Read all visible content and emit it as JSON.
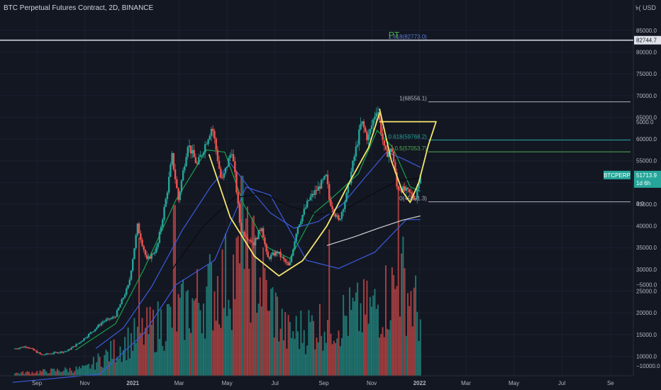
{
  "header": {
    "title": "BTC Perpetual Futures Contract, 2D, BINANCE",
    "currency": "USD",
    "currency_prefix": "৳("
  },
  "badges": {
    "symbol": "BTCPERP",
    "last_price": "51713.9",
    "countdown": "1d 6h",
    "pt_level_price": "82744.7"
  },
  "colors": {
    "background": "#131722",
    "up": "#26a69a",
    "down": "#ef5350",
    "ma_fast": "#16a34a",
    "ma_mid": "#3b5bdb",
    "ma_slow": "#0b0d12",
    "ma_long": "#cfcfcf",
    "pattern": "#f5e66e",
    "pt_label": "#4caf50",
    "fib_1618": "#5b7bd5",
    "fib_1": "#b2b5be",
    "fib_0618": "#26a69a",
    "fib_05": "#4caf50",
    "fib_0": "#b2b5be"
  },
  "chart_data": {
    "type": "candlestick",
    "title": "BTC Perpetual Futures Contract, 2D, BINANCE",
    "x_axis": {
      "ticks": [
        {
          "label": "Sep",
          "date": "2020-09-01"
        },
        {
          "label": "Nov",
          "date": "2020-11-01"
        },
        {
          "label": "2021",
          "date": "2021-01-01"
        },
        {
          "label": "Mar",
          "date": "2021-03-01"
        },
        {
          "label": "May",
          "date": "2021-05-01"
        },
        {
          "label": "Jul",
          "date": "2021-07-01"
        },
        {
          "label": "Sep",
          "date": "2021-09-01"
        },
        {
          "label": "Nov",
          "date": "2021-11-01"
        },
        {
          "label": "2022",
          "date": "2022-01-01"
        },
        {
          "label": "Mar",
          "date": "2022-03-01"
        },
        {
          "label": "May",
          "date": "2022-05-01"
        },
        {
          "label": "Jul",
          "date": "2022-07-01"
        },
        {
          "label": "Se",
          "date": "2022-09-01"
        }
      ],
      "range": [
        "2020-07-16",
        "2022-09-30"
      ]
    },
    "price_axis": {
      "ticks": [
        10000,
        15000,
        20000,
        25000,
        30000,
        35000,
        40000,
        45000,
        50000,
        55000,
        60000,
        65000,
        70000,
        75000,
        80000,
        85000
      ],
      "range": [
        5500,
        92000
      ]
    },
    "volume_axis": {
      "ticks": [
        -10000,
        -5000,
        0,
        5000,
        10000
      ],
      "labels": [
        "−10000.0",
        "−5000.0",
        "0.0",
        "5000.0",
        "10000.0"
      ],
      "range": [
        -10600,
        12500
      ]
    },
    "price_keypoints": [
      [
        "2020-08-03",
        11700
      ],
      [
        "2020-08-20",
        12300
      ],
      [
        "2020-09-08",
        10300
      ],
      [
        "2020-09-25",
        10800
      ],
      [
        "2020-10-10",
        11200
      ],
      [
        "2020-10-25",
        13000
      ],
      [
        "2020-11-10",
        15500
      ],
      [
        "2020-11-25",
        18000
      ],
      [
        "2020-12-10",
        19000
      ],
      [
        "2020-12-28",
        26500
      ],
      [
        "2021-01-08",
        40000
      ],
      [
        "2021-01-20",
        32000
      ],
      [
        "2021-02-02",
        35000
      ],
      [
        "2021-02-14",
        47000
      ],
      [
        "2021-02-21",
        56000
      ],
      [
        "2021-03-01",
        46000
      ],
      [
        "2021-03-13",
        59000
      ],
      [
        "2021-03-25",
        54000
      ],
      [
        "2021-04-13",
        63000
      ],
      [
        "2021-04-25",
        50000
      ],
      [
        "2021-05-08",
        57500
      ],
      [
        "2021-05-13",
        50000
      ],
      [
        "2021-05-19",
        39000
      ],
      [
        "2021-06-05",
        36000
      ],
      [
        "2021-06-15",
        40000
      ],
      [
        "2021-06-22",
        32500
      ],
      [
        "2021-07-05",
        34000
      ],
      [
        "2021-07-20",
        30500
      ],
      [
        "2021-07-30",
        39500
      ],
      [
        "2021-08-14",
        46000
      ],
      [
        "2021-08-25",
        48500
      ],
      [
        "2021-09-06",
        51500
      ],
      [
        "2021-09-08",
        46500
      ],
      [
        "2021-09-21",
        41000
      ],
      [
        "2021-10-01",
        47000
      ],
      [
        "2021-10-20",
        64000
      ],
      [
        "2021-10-28",
        60000
      ],
      [
        "2021-11-09",
        67500
      ],
      [
        "2021-11-19",
        56500
      ],
      [
        "2021-11-28",
        57500
      ],
      [
        "2021-12-04",
        49000
      ],
      [
        "2021-12-16",
        48000
      ],
      [
        "2021-12-28",
        46500
      ],
      [
        "2022-01-02",
        51714
      ]
    ],
    "series": [
      {
        "name": "MA fast",
        "color": "#16a34a",
        "points": [
          [
            "2020-10-20",
            11400
          ],
          [
            "2020-12-10",
            17500
          ],
          [
            "2021-01-15",
            30000
          ],
          [
            "2021-02-25",
            46000
          ],
          [
            "2021-04-05",
            57500
          ],
          [
            "2021-04-28",
            57000
          ],
          [
            "2021-05-22",
            45000
          ],
          [
            "2021-06-22",
            35000
          ],
          [
            "2021-07-20",
            32500
          ],
          [
            "2021-08-20",
            43000
          ],
          [
            "2021-09-12",
            46500
          ],
          [
            "2021-10-15",
            52000
          ],
          [
            "2021-11-08",
            62000
          ],
          [
            "2021-11-28",
            58000
          ],
          [
            "2021-12-20",
            49000
          ],
          [
            "2022-01-02",
            48000
          ]
        ]
      },
      {
        "name": "MA mid",
        "color": "#3b5bdb",
        "points": [
          [
            "2020-11-15",
            11800
          ],
          [
            "2020-12-20",
            16500
          ],
          [
            "2021-01-25",
            26000
          ],
          [
            "2021-03-05",
            39000
          ],
          [
            "2021-04-10",
            49000
          ],
          [
            "2021-05-05",
            54500
          ],
          [
            "2021-05-28",
            49000
          ],
          [
            "2021-06-25",
            43000
          ],
          [
            "2021-07-25",
            39500
          ],
          [
            "2021-08-25",
            41000
          ],
          [
            "2021-09-25",
            45000
          ],
          [
            "2021-10-25",
            51500
          ],
          [
            "2021-11-20",
            57000
          ],
          [
            "2021-12-10",
            55500
          ],
          [
            "2022-01-02",
            53500
          ]
        ]
      },
      {
        "name": "MA slow",
        "color": "#0b0d12",
        "points": [
          [
            "2021-02-20",
            30000
          ],
          [
            "2021-04-01",
            40000
          ],
          [
            "2021-05-10",
            46500
          ],
          [
            "2021-06-15",
            47500
          ],
          [
            "2021-07-20",
            44500
          ],
          [
            "2021-08-25",
            42500
          ],
          [
            "2021-09-25",
            43500
          ],
          [
            "2021-10-30",
            47000
          ],
          [
            "2021-12-05",
            50500
          ],
          [
            "2022-01-02",
            51000
          ]
        ]
      },
      {
        "name": "MA long",
        "color": "#cfcfcf",
        "points": [
          [
            "2021-09-05",
            35500
          ],
          [
            "2021-10-10",
            37500
          ],
          [
            "2021-11-10",
            39500
          ],
          [
            "2021-12-10",
            41300
          ],
          [
            "2022-01-02",
            42300
          ]
        ]
      }
    ],
    "volume_profile": [
      [
        "2020-08-01",
        150
      ],
      [
        "2020-11-01",
        450
      ],
      [
        "2021-01-01",
        2300
      ],
      [
        "2021-03-01",
        3800
      ],
      [
        "2021-05-01",
        6000
      ],
      [
        "2021-06-01",
        7000
      ],
      [
        "2021-07-15",
        2500
      ],
      [
        "2021-09-01",
        3300
      ],
      [
        "2021-11-01",
        4000
      ],
      [
        "2021-12-10",
        5800
      ],
      [
        "2022-01-02",
        3500
      ]
    ],
    "volume_spikes": [
      [
        "2021-01-08",
        8500
      ],
      [
        "2021-02-22",
        10500
      ],
      [
        "2021-05-19",
        12300
      ],
      [
        "2021-06-22",
        4000
      ],
      [
        "2021-09-07",
        9000
      ],
      [
        "2021-12-04",
        11500
      ]
    ],
    "volume_ma": [
      [
        "2020-08-01",
        -11000
      ],
      [
        "2020-11-20",
        -10500
      ],
      [
        "2021-01-15",
        -8000
      ],
      [
        "2021-02-25",
        -5000
      ],
      [
        "2021-04-15",
        -3500
      ],
      [
        "2021-05-25",
        1000
      ],
      [
        "2021-06-25",
        500
      ],
      [
        "2021-08-10",
        -3500
      ],
      [
        "2021-09-20",
        -4000
      ],
      [
        "2021-11-05",
        -3000
      ],
      [
        "2021-12-15",
        -1000
      ],
      [
        "2022-01-02",
        -1000
      ]
    ],
    "fib_levels": [
      {
        "label": "1.618(82773.0)",
        "value": 82773.0
      },
      {
        "label": "1(68556.1)",
        "value": 68556.1
      },
      {
        "label": "0.618(59768.2)",
        "value": 59768.2
      },
      {
        "label": "0.5(57053.7)",
        "value": 57053.7
      },
      {
        "label": "0(45551.3)",
        "value": 45551.3
      }
    ],
    "pt_level": {
      "label": "PT",
      "value": 82744.7
    },
    "current_price": 51713.9,
    "annotations": {
      "cup_path": [
        [
          "2021-04-08",
          56500
        ],
        [
          "2021-05-05",
          42000
        ],
        [
          "2021-06-05",
          33000
        ],
        [
          "2021-07-06",
          28500
        ],
        [
          "2021-08-05",
          32000
        ],
        [
          "2021-09-05",
          40000
        ],
        [
          "2021-10-05",
          50500
        ],
        [
          "2021-10-28",
          58000
        ],
        [
          "2021-11-11",
          66000
        ]
      ],
      "handle_path": [
        [
          "2021-11-11",
          67000
        ],
        [
          "2021-11-26",
          55000
        ],
        [
          "2021-12-10",
          48000
        ],
        [
          "2021-12-20",
          45400
        ],
        [
          "2021-12-31",
          50000
        ],
        [
          "2022-01-12",
          58500
        ],
        [
          "2022-01-22",
          64000
        ],
        [
          "2021-11-11",
          64000
        ]
      ]
    }
  }
}
